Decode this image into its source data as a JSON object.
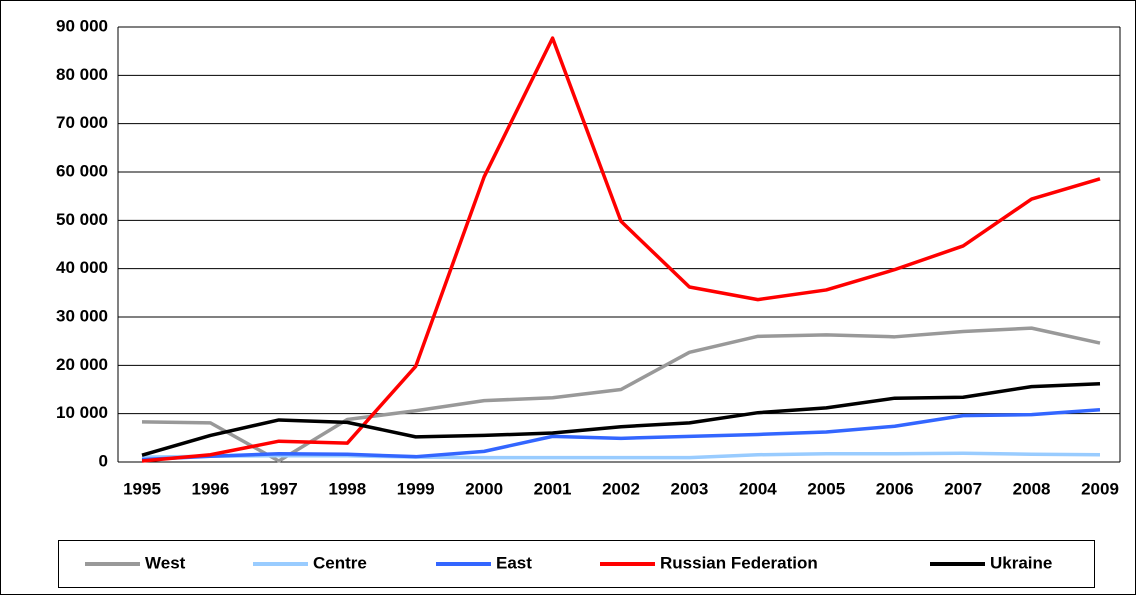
{
  "chart_data": {
    "type": "line",
    "categories": [
      "1995",
      "1996",
      "1997",
      "1998",
      "1999",
      "2000",
      "2001",
      "2002",
      "2003",
      "2004",
      "2005",
      "2006",
      "2007",
      "2008",
      "2009"
    ],
    "series": [
      {
        "name": "West",
        "color": "#999999",
        "values": [
          8300,
          8100,
          200,
          8800,
          10600,
          12700,
          13300,
          15000,
          22700,
          26000,
          26300,
          25900,
          27000,
          27700,
          24600
        ]
      },
      {
        "name": "Centre",
        "color": "#99ccff",
        "values": [
          1000,
          1200,
          1300,
          1300,
          1000,
          900,
          900,
          900,
          900,
          1500,
          1700,
          1700,
          1800,
          1600,
          1500
        ]
      },
      {
        "name": "East",
        "color": "#3366ff",
        "values": [
          500,
          1200,
          1700,
          1600,
          1100,
          2200,
          5300,
          4900,
          5300,
          5700,
          6200,
          7400,
          9600,
          9800,
          10800
        ]
      },
      {
        "name": "Russian Federation",
        "color": "#ff0000",
        "values": [
          200,
          1500,
          4300,
          3900,
          19800,
          59000,
          87700,
          49800,
          36200,
          33600,
          35600,
          39800,
          44700,
          54400,
          58600
        ]
      },
      {
        "name": "Ukraine",
        "color": "#000000",
        "values": [
          1400,
          5500,
          8700,
          8200,
          5200,
          5500,
          6000,
          7300,
          8100,
          10200,
          11200,
          13200,
          13400,
          15600,
          16200
        ]
      }
    ],
    "ylim": [
      0,
      90000
    ],
    "yticks": [
      0,
      {
        "value": 10000,
        "label": "10 000"
      },
      {
        "value": 20000,
        "label": "20 000"
      },
      {
        "value": 30000,
        "label": "30 000"
      },
      {
        "value": 40000,
        "label": "40 000"
      },
      {
        "value": 50000,
        "label": "50 000"
      },
      {
        "value": 60000,
        "label": "60 000"
      },
      {
        "value": 70000,
        "label": "70 000"
      },
      {
        "value": 80000,
        "label": "80 000"
      },
      {
        "value": 90000,
        "label": "90 000"
      }
    ],
    "grid": true,
    "legend": "bottom"
  }
}
